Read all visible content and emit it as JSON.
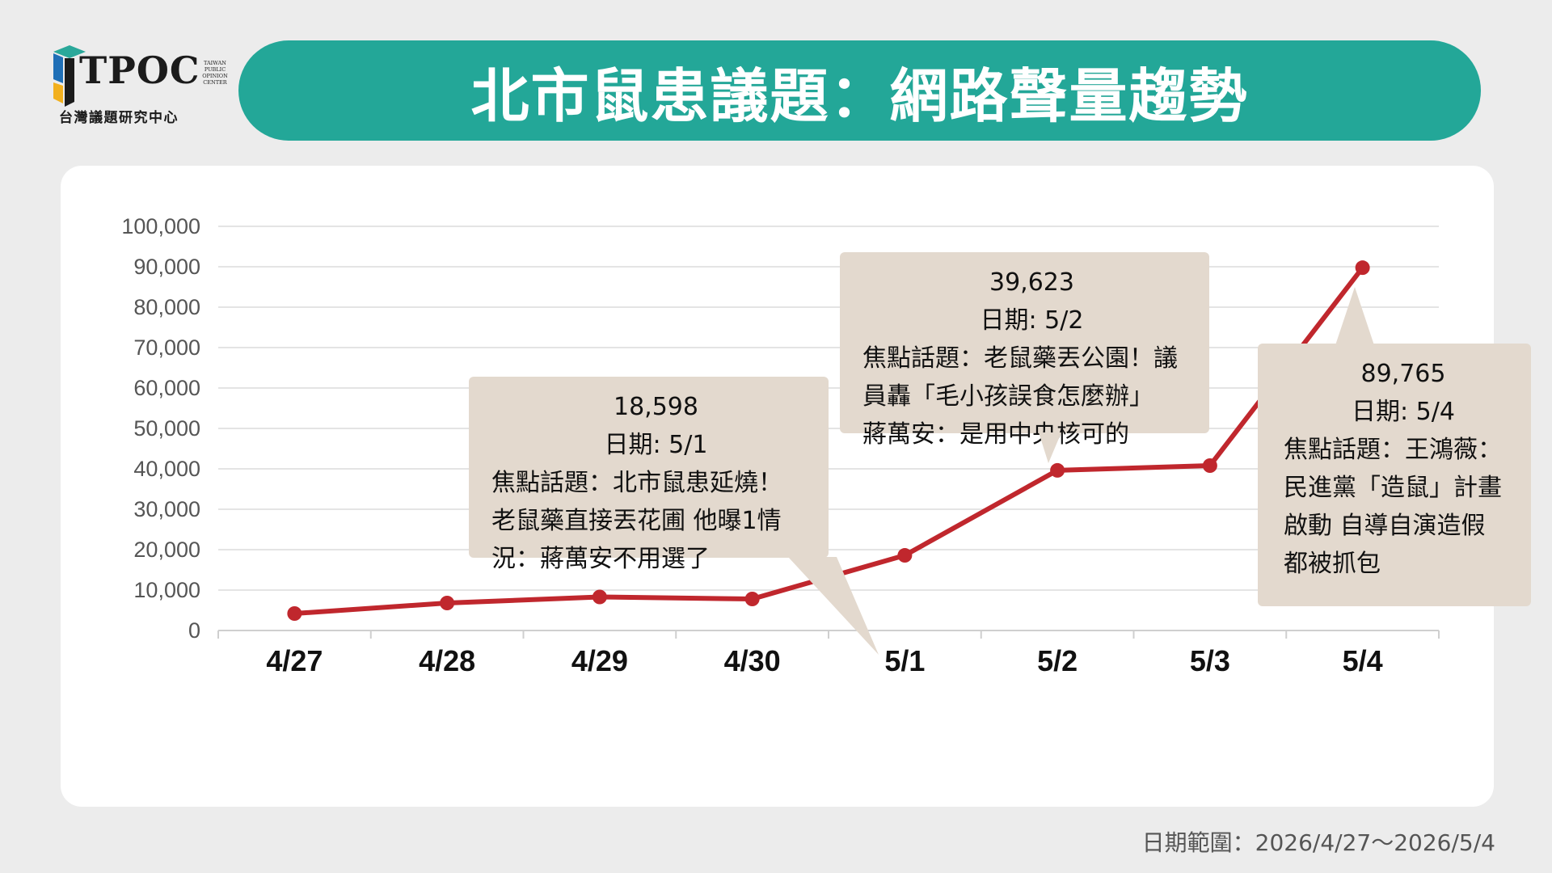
{
  "logo": {
    "name": "TPOC",
    "small_text": "TAIWAN PUBLIC OPINION CENTER",
    "subtitle": "台灣議題研究中心"
  },
  "title": "北市鼠患議題：網路聲量趨勢",
  "colors": {
    "title_bar": "#23a798",
    "line": "#c0272d",
    "callout_bg": "#e3d9ce",
    "background": "#ececec"
  },
  "chart_data": {
    "type": "line",
    "categories": [
      "4/27",
      "4/28",
      "4/29",
      "4/30",
      "5/1",
      "5/2",
      "5/3",
      "5/4"
    ],
    "series": [
      {
        "values": [
          4200,
          6800,
          8300,
          7800,
          18598,
          39623,
          40800,
          89765
        ]
      }
    ],
    "ylim": [
      0,
      100000
    ],
    "yticks": [
      "0",
      "10,000",
      "20,000",
      "30,000",
      "40,000",
      "50,000",
      "60,000",
      "70,000",
      "80,000",
      "90,000",
      "100,000"
    ],
    "grid": true,
    "xlabel": "",
    "ylabel": ""
  },
  "callouts": [
    {
      "value": "18,598",
      "date": "日期: 5/1",
      "topic": "焦點話題：北市鼠患延燒！\n老鼠藥直接丟花圃  他曝1情\n況：蔣萬安不用選了"
    },
    {
      "value": "39,623",
      "date": "日期: 5/2",
      "topic": "焦點話題：老鼠藥丟公園！議\n員轟「毛小孩誤食怎麼辦」\n蔣萬安：是用中央核可的"
    },
    {
      "value": "89,765",
      "date": "日期: 5/4",
      "topic": "焦點話題：王鴻薇：\n民進黨「造鼠」計畫\n啟動  自導自演造假\n都被抓包"
    }
  ],
  "footer": {
    "date_range": "日期範圍：2026/4/27～2026/5/4"
  }
}
